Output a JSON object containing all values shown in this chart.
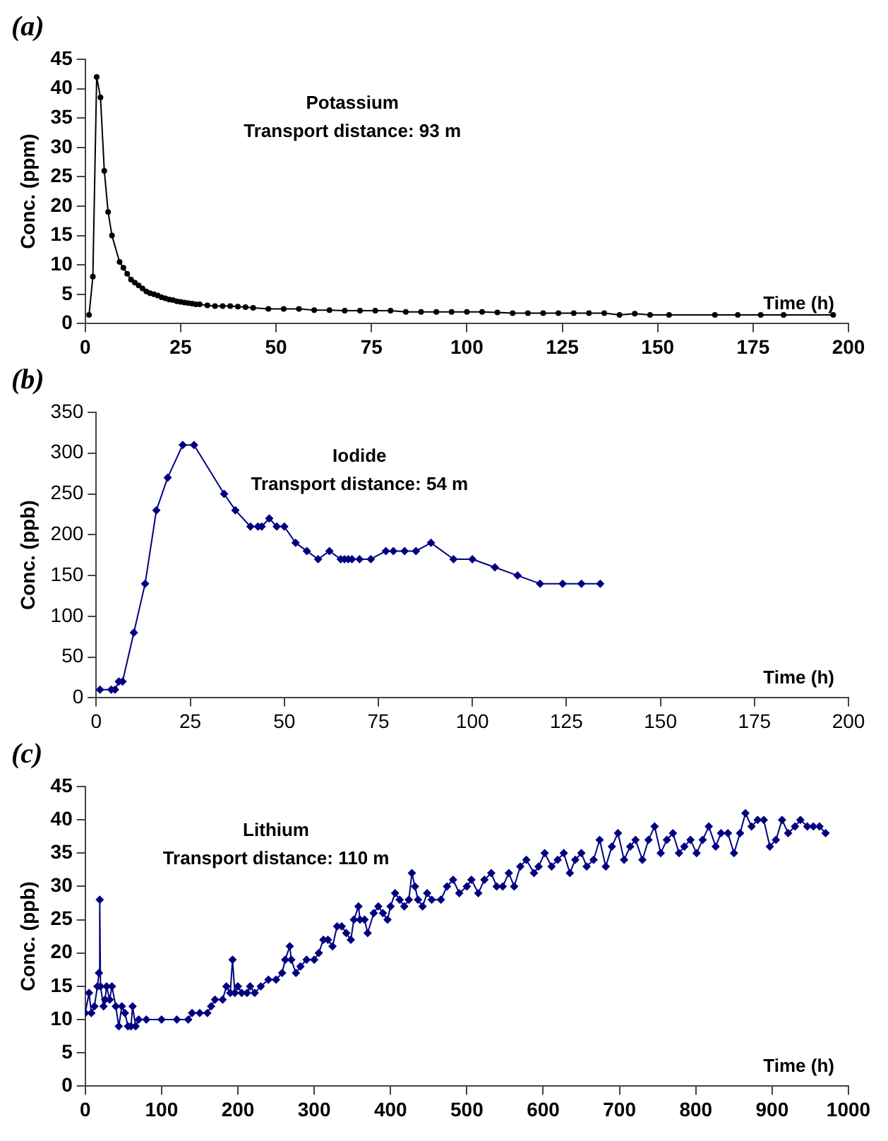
{
  "chart_data": [
    {
      "type": "line",
      "title": "(a)",
      "annotations": [
        "Potassium",
        "Transport distance: 93 m"
      ],
      "xlabel": "Time (h)",
      "ylabel": "Conc. (ppm)",
      "marker": "circle",
      "line_style": "solid",
      "grid": false,
      "legend": false,
      "xlim": [
        0,
        200
      ],
      "xticks": [
        0,
        25,
        50,
        75,
        100,
        125,
        150,
        175,
        200
      ],
      "ylim": [
        0,
        45
      ],
      "yticks": [
        0,
        5,
        10,
        15,
        20,
        25,
        30,
        35,
        40,
        45
      ],
      "series": [
        {
          "color": "#000000",
          "x": [
            1,
            2,
            3,
            4,
            5,
            6,
            7,
            9,
            10,
            11,
            12,
            13,
            14,
            15,
            16,
            17,
            18,
            19,
            20,
            21,
            22,
            23,
            24,
            25,
            26,
            27,
            28,
            29,
            30,
            32,
            34,
            36,
            38,
            40,
            42,
            44,
            48,
            52,
            56,
            60,
            64,
            68,
            72,
            76,
            80,
            84,
            88,
            92,
            96,
            100,
            104,
            108,
            112,
            116,
            120,
            124,
            128,
            132,
            136,
            140,
            144,
            148,
            153,
            165,
            171,
            177,
            183,
            196
          ],
          "values": [
            1.5,
            8,
            42,
            38.5,
            26,
            19,
            15,
            10.5,
            9.5,
            8.5,
            7.5,
            7,
            6.5,
            6,
            5.5,
            5.2,
            5,
            4.8,
            4.5,
            4.3,
            4.1,
            4,
            3.8,
            3.7,
            3.6,
            3.5,
            3.4,
            3.3,
            3.3,
            3.1,
            3,
            3,
            3,
            2.9,
            2.8,
            2.7,
            2.5,
            2.5,
            2.5,
            2.3,
            2.3,
            2.2,
            2.2,
            2.2,
            2.2,
            2,
            2,
            2,
            2,
            2,
            2,
            1.9,
            1.8,
            1.8,
            1.8,
            1.8,
            1.8,
            1.8,
            1.8,
            1.5,
            1.7,
            1.5,
            1.5,
            1.5,
            1.5,
            1.5,
            1.5,
            1.5
          ]
        }
      ]
    },
    {
      "type": "line",
      "title": "(b)",
      "annotations": [
        "Iodide",
        "Transport distance: 54 m"
      ],
      "xlabel": "Time (h)",
      "ylabel": "Conc. (ppb)",
      "marker": "diamond",
      "line_style": "solid",
      "grid": false,
      "legend": false,
      "xlim": [
        0,
        200
      ],
      "xticks": [
        0,
        25,
        50,
        75,
        100,
        125,
        150,
        175,
        200
      ],
      "ylim": [
        0,
        350
      ],
      "yticks": [
        0,
        50,
        100,
        150,
        200,
        250,
        300,
        350
      ],
      "series": [
        {
          "color": "#000080",
          "x": [
            1,
            4,
            5,
            6,
            7,
            10,
            13,
            16,
            19,
            23,
            26,
            34,
            37,
            41,
            43,
            44,
            46,
            48,
            50,
            53,
            56,
            59,
            62,
            65,
            66,
            67,
            68,
            70,
            73,
            77,
            79,
            82,
            85,
            89,
            95,
            100,
            106,
            112,
            118,
            124,
            129,
            134
          ],
          "values": [
            10,
            10,
            10,
            20,
            20,
            80,
            140,
            230,
            270,
            310,
            310,
            250,
            230,
            210,
            210,
            210,
            220,
            210,
            210,
            190,
            180,
            170,
            180,
            170,
            170,
            170,
            170,
            170,
            170,
            180,
            180,
            180,
            180,
            190,
            170,
            170,
            160,
            150,
            140,
            140,
            140,
            140
          ]
        }
      ]
    },
    {
      "type": "line",
      "title": "(c)",
      "annotations": [
        "Lithium",
        "Transport distance: 110 m"
      ],
      "xlabel": "Time (h)",
      "ylabel": "Conc. (ppb)",
      "marker": "diamond",
      "line_style": "solid",
      "grid": false,
      "legend": false,
      "xlim": [
        0,
        1000
      ],
      "xticks": [
        0,
        100,
        200,
        300,
        400,
        500,
        600,
        700,
        800,
        900,
        1000
      ],
      "ylim": [
        0,
        45
      ],
      "yticks": [
        0,
        5,
        10,
        15,
        20,
        25,
        30,
        35,
        40,
        45
      ],
      "series": [
        {
          "color": "#000080",
          "x": [
            0,
            5,
            8,
            12,
            16,
            18,
            19,
            20,
            24,
            26,
            28,
            32,
            35,
            40,
            44,
            48,
            52,
            56,
            60,
            62,
            66,
            70,
            80,
            100,
            120,
            135,
            140,
            150,
            160,
            165,
            170,
            180,
            185,
            190,
            193,
            196,
            200,
            205,
            212,
            216,
            222,
            230,
            240,
            250,
            258,
            262,
            268,
            270,
            276,
            282,
            290,
            300,
            306,
            312,
            318,
            324,
            330,
            336,
            342,
            348,
            352,
            358,
            360,
            366,
            370,
            378,
            384,
            390,
            396,
            400,
            406,
            412,
            418,
            424,
            428,
            432,
            436,
            442,
            448,
            454,
            466,
            474,
            482,
            490,
            500,
            506,
            515,
            523,
            532,
            539,
            547,
            555,
            562,
            570,
            578,
            588,
            594,
            602,
            611,
            619,
            627,
            635,
            642,
            650,
            657,
            666,
            674,
            682,
            690,
            698,
            706,
            714,
            721,
            730,
            738,
            746,
            754,
            762,
            770,
            778,
            785,
            793,
            801,
            809,
            817,
            826,
            833,
            842,
            850,
            858,
            865,
            873,
            881,
            889,
            897,
            905,
            913,
            921,
            930,
            937,
            946,
            954,
            962,
            970
          ],
          "values": [
            11,
            14,
            11,
            12,
            15,
            17,
            28,
            15,
            12,
            13,
            15,
            13,
            15,
            12,
            9,
            12,
            11,
            9,
            9,
            12,
            9,
            10,
            10,
            10,
            10,
            10,
            11,
            11,
            11,
            12,
            13,
            13,
            15,
            14,
            19,
            14,
            15,
            14,
            14,
            15,
            14,
            15,
            16,
            16,
            17,
            19,
            21,
            19,
            17,
            18,
            19,
            19,
            20,
            22,
            22,
            21,
            24,
            24,
            23,
            22,
            25,
            27,
            25,
            25,
            23,
            26,
            27,
            26,
            25,
            27,
            29,
            28,
            27,
            28,
            32,
            30,
            28,
            27,
            29,
            28,
            28,
            30,
            31,
            29,
            30,
            31,
            29,
            31,
            32,
            30,
            30,
            32,
            30,
            33,
            34,
            32,
            33,
            35,
            33,
            34,
            35,
            32,
            34,
            35,
            33,
            34,
            37,
            33,
            36,
            38,
            34,
            36,
            37,
            34,
            37,
            39,
            35,
            37,
            38,
            35,
            36,
            37,
            35,
            37,
            39,
            36,
            38,
            38,
            35,
            38,
            41,
            39,
            40,
            40,
            36,
            37,
            40,
            38,
            39,
            40,
            39,
            39,
            39,
            38
          ]
        }
      ]
    }
  ]
}
